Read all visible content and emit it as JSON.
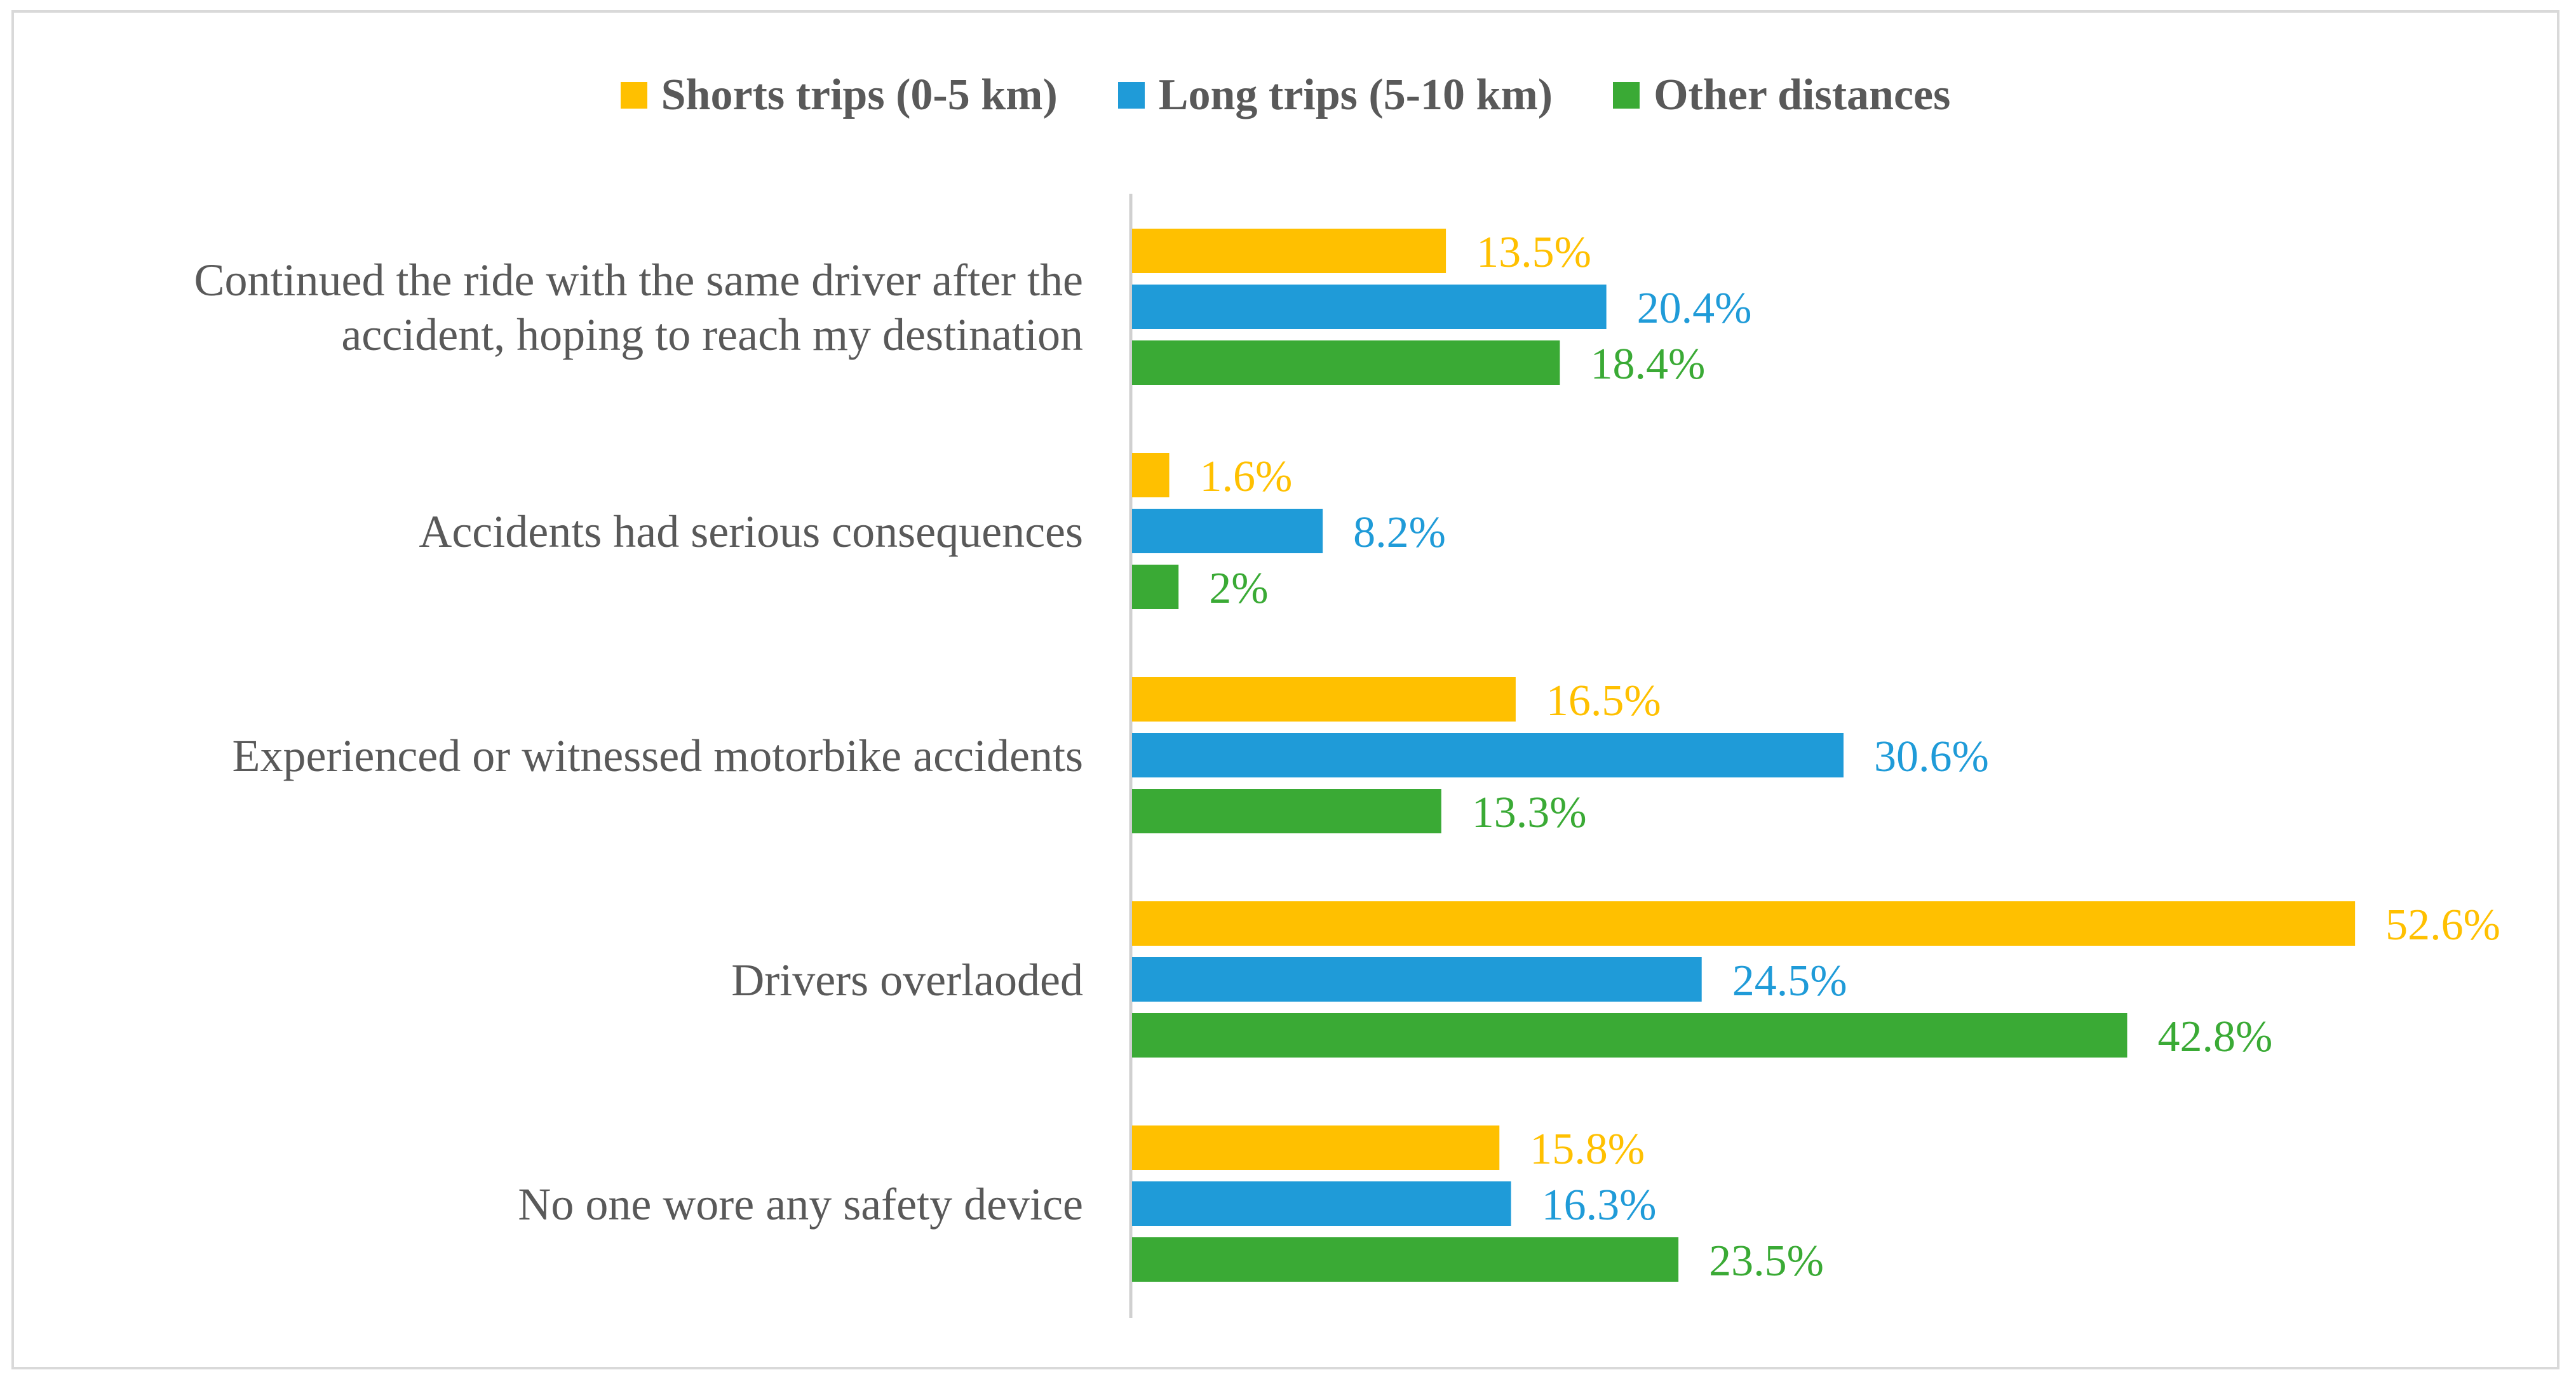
{
  "chart_data": {
    "type": "bar",
    "orientation": "horizontal",
    "categories": [
      [
        "Continued the ride with the same driver after the",
        "accident, hoping to reach my destination"
      ],
      [
        "Accidents had serious consequences"
      ],
      [
        "Experienced or witnessed motorbike accidents"
      ],
      [
        "Drivers overlaoded"
      ],
      [
        "No one wore any safety device"
      ]
    ],
    "series": [
      {
        "name": "Shorts trips (0-5 km)",
        "color": "#FFC000",
        "values": [
          13.5,
          1.6,
          16.5,
          52.6,
          15.8
        ],
        "labels": [
          "13.5%",
          "1.6%",
          "16.5%",
          "52.6%",
          "15.8%"
        ]
      },
      {
        "name": "Long trips (5-10 km)",
        "color": "#1F9BD8",
        "values": [
          20.4,
          8.2,
          30.6,
          24.5,
          16.3
        ],
        "labels": [
          "20.4%",
          "8.2%",
          "30.6%",
          "24.5%",
          "16.3%"
        ]
      },
      {
        "name": "Other distances",
        "color": "#3AAA35",
        "values": [
          18.4,
          2,
          13.3,
          42.8,
          23.5
        ],
        "labels": [
          "18.4%",
          "2%",
          "13.3%",
          "42.8%",
          "23.5%"
        ]
      }
    ],
    "legend_position": "top",
    "grid": false,
    "xlim": [
      0,
      55
    ]
  }
}
